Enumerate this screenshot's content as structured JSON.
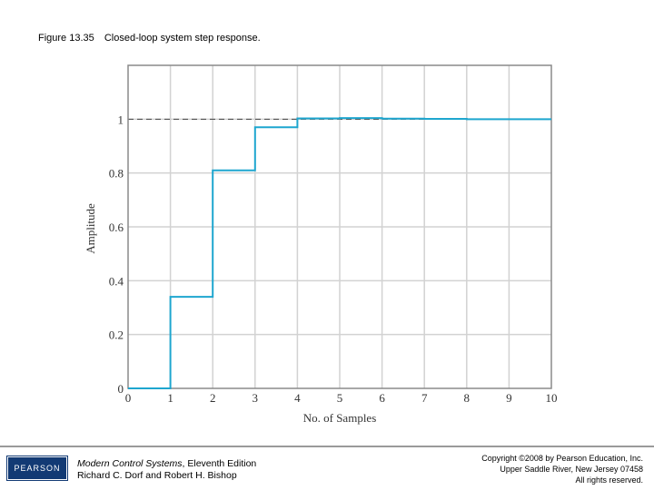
{
  "caption": {
    "figure_number": "Figure 13.35",
    "text": "Closed-loop system step response."
  },
  "chart_data": {
    "type": "line",
    "step": true,
    "xlabel": "No. of Samples",
    "ylabel": "Amplitude",
    "xlim": [
      0,
      10
    ],
    "ylim": [
      0,
      1.2
    ],
    "x_ticks": [
      0,
      1,
      2,
      3,
      4,
      5,
      6,
      7,
      8,
      9,
      10
    ],
    "x_tick_labels": [
      "0",
      "1",
      "2",
      "3",
      "4",
      "5",
      "6",
      "7",
      "8",
      "9",
      "10"
    ],
    "y_ticks": [
      0,
      0.2,
      0.4,
      0.6,
      0.8,
      1
    ],
    "y_tick_labels": [
      "0",
      "0.2",
      "0.4",
      "0.6",
      "0.8",
      "1"
    ],
    "grid": true,
    "reference_line": {
      "y": 1,
      "style": "dashed"
    },
    "series": [
      {
        "x": [
          0,
          1,
          2,
          3,
          4,
          5,
          6,
          7,
          8,
          9,
          10
        ],
        "values": [
          0,
          0.34,
          0.81,
          0.97,
          1.003,
          1.004,
          1.002,
          1.001,
          1.0,
          1.0,
          1.0
        ],
        "color": "#1ea6cf"
      }
    ]
  },
  "footer": {
    "logo_text": "PEARSON",
    "book_title": "Modern Control Systems",
    "book_edition": ", Eleventh Edition",
    "authors": "Richard C. Dorf and Robert H. Bishop",
    "copyright_line1": "Copyright ©2008 by Pearson Education, Inc.",
    "copyright_line2": "Upper Saddle River, New Jersey 07458",
    "copyright_line3": "All rights reserved."
  }
}
